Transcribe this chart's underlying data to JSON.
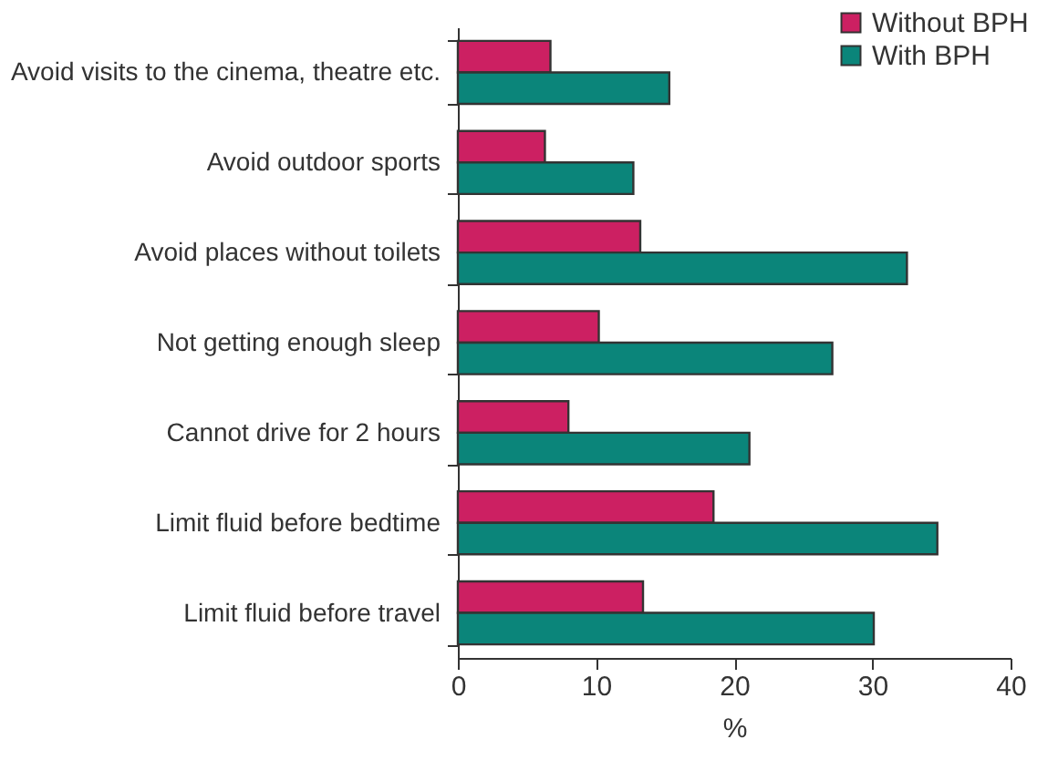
{
  "chart_data": {
    "type": "bar",
    "orientation": "horizontal",
    "xlabel": "%",
    "categories": [
      "Avoid visits to the cinema, theatre etc.",
      "Avoid outdoor sports",
      "Avoid places without toilets",
      "Not getting enough sleep",
      "Cannot drive for 2 hours",
      "Limit fluid before bedtime",
      "Limit fluid before travel"
    ],
    "series": [
      {
        "name": "Without BPH",
        "color": "#cc2062",
        "values": [
          6.7,
          6.3,
          13.2,
          10.2,
          8.0,
          18.5,
          13.4
        ]
      },
      {
        "name": "With BPH",
        "color": "#0b857a",
        "values": [
          15.3,
          12.7,
          32.5,
          27.1,
          21.1,
          34.7,
          30.1
        ]
      }
    ],
    "xlim": [
      0,
      40
    ],
    "xticks": [
      0,
      10,
      20,
      30,
      40
    ],
    "grid": false,
    "legend": "top right"
  }
}
